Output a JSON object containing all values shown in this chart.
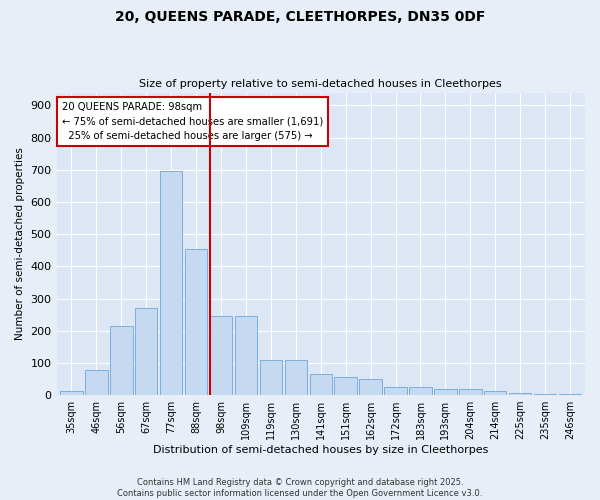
{
  "title1": "20, QUEENS PARADE, CLEETHORPES, DN35 0DF",
  "title2": "Size of property relative to semi-detached houses in Cleethorpes",
  "xlabel": "Distribution of semi-detached houses by size in Cleethorpes",
  "ylabel": "Number of semi-detached properties",
  "bins": [
    "35sqm",
    "46sqm",
    "56sqm",
    "67sqm",
    "77sqm",
    "88sqm",
    "98sqm",
    "109sqm",
    "119sqm",
    "130sqm",
    "141sqm",
    "151sqm",
    "162sqm",
    "172sqm",
    "183sqm",
    "193sqm",
    "204sqm",
    "214sqm",
    "225sqm",
    "235sqm",
    "246sqm"
  ],
  "values": [
    12,
    78,
    215,
    270,
    695,
    455,
    245,
    245,
    110,
    110,
    65,
    55,
    50,
    25,
    25,
    18,
    18,
    12,
    8,
    4,
    2
  ],
  "bar_color": "#c5d9f1",
  "bar_edge_color": "#6fa8dc",
  "property_line_color": "#cc0000",
  "annotation_line1": "20 QUEENS PARADE: 98sqm",
  "annotation_line2": "← 75% of semi-detached houses are smaller (1,691)",
  "annotation_line3": "  25% of semi-detached houses are larger (575) →",
  "annotation_box_color": "#ffffff",
  "annotation_box_edge": "#cc0000",
  "background_color": "#e8eef7",
  "plot_bg_color": "#dce6f5",
  "footer": "Contains HM Land Registry data © Crown copyright and database right 2025.\nContains public sector information licensed under the Open Government Licence v3.0.",
  "ylim": [
    0,
    940
  ],
  "yticks": [
    0,
    100,
    200,
    300,
    400,
    500,
    600,
    700,
    800,
    900
  ]
}
